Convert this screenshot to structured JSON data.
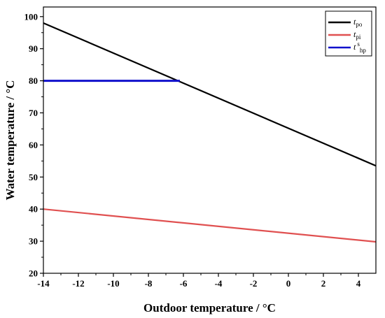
{
  "chart_data": {
    "type": "line",
    "title": "",
    "xlabel": "Outdoor temperature / °C",
    "ylabel": "Water temperature / °C",
    "xlim": [
      -14,
      5
    ],
    "ylim": [
      20,
      103
    ],
    "xticks": [
      -14,
      -12,
      -10,
      -8,
      -6,
      -4,
      -2,
      0,
      2,
      4
    ],
    "yticks": [
      20,
      30,
      40,
      50,
      60,
      70,
      80,
      90,
      100
    ],
    "xtick_labels": [
      "-14",
      "-12",
      "-10",
      "-8",
      "-6",
      "-4",
      "-2",
      "0",
      "2",
      "4"
    ],
    "ytick_labels": [
      "20",
      "30",
      "40",
      "50",
      "60",
      "70",
      "80",
      "90",
      "100"
    ],
    "grid": false,
    "legend_position": "top-right",
    "series": [
      {
        "name_main": "t",
        "name_sub": "po",
        "name_sup": "",
        "color": "#000000",
        "x": [
          -14,
          5
        ],
        "y": [
          98,
          53.5
        ]
      },
      {
        "name_main": "t",
        "name_sub": "pi",
        "name_sup": "",
        "color": "#e05050",
        "x": [
          -14,
          5
        ],
        "y": [
          40,
          29.8
        ]
      },
      {
        "name_main": "t",
        "name_sub": "hp",
        "name_sup": "s",
        "color": "#1010cc",
        "x": [
          -14,
          -6.2
        ],
        "y": [
          80,
          80
        ]
      }
    ]
  }
}
